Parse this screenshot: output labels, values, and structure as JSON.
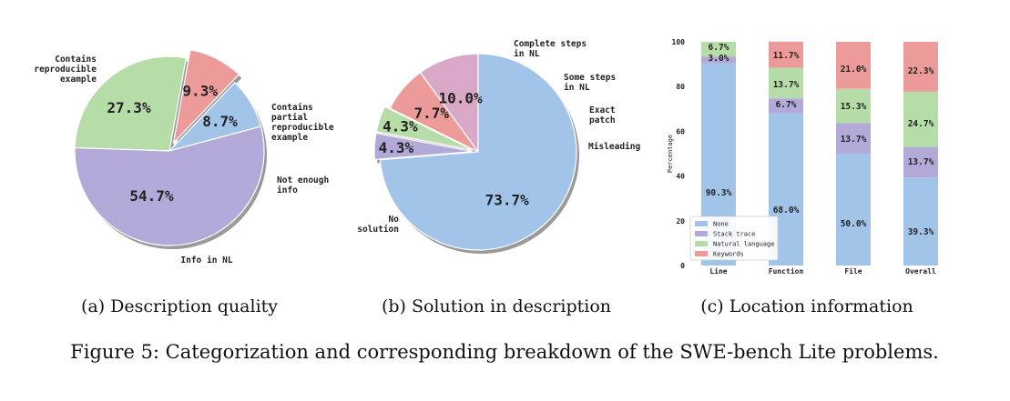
{
  "colors": {
    "blue": "#a1c4e8",
    "purple": "#b3a9d8",
    "green": "#b6dca8",
    "red": "#ec9a9a",
    "pink": "#d8a8c6",
    "shadow": "#9a9a9a"
  },
  "chart_data": [
    {
      "type": "pie",
      "title": "(a) Description quality",
      "slices": [
        {
          "label": "Contains partial reproducible example",
          "label_lines": [
            "Contains",
            "partial",
            "reproducible",
            "example"
          ],
          "value": 8.7,
          "pct": "8.7%",
          "color": "blue",
          "explode": 0
        },
        {
          "label": "Not enough info",
          "label_lines": [
            "Not enough",
            "info"
          ],
          "value": 9.3,
          "pct": "9.3%",
          "color": "red",
          "explode": 10
        },
        {
          "label": "Info in NL",
          "label_lines": [
            "Info in NL"
          ],
          "value": 27.3,
          "pct": "27.3%",
          "color": "green",
          "explode": 0
        },
        {
          "label": "Contains reproducible example",
          "label_lines": [
            "Contains",
            "reproducible",
            "example"
          ],
          "value": 54.7,
          "pct": "54.7%",
          "color": "purple",
          "explode": 0
        }
      ]
    },
    {
      "type": "pie",
      "title": "(b) Solution in description",
      "slices": [
        {
          "label": "Complete steps in NL",
          "label_lines": [
            "Complete steps",
            "in NL"
          ],
          "value": 10.0,
          "pct": "10.0%",
          "color": "pink",
          "explode": 0
        },
        {
          "label": "Some steps in NL",
          "label_lines": [
            "Some steps",
            "in NL"
          ],
          "value": 7.7,
          "pct": "7.7%",
          "color": "red",
          "explode": 0
        },
        {
          "label": "Exact patch",
          "label_lines": [
            "Exact",
            "patch"
          ],
          "value": 4.3,
          "pct": "4.3%",
          "color": "green",
          "explode": 6
        },
        {
          "label": "Misleading",
          "label_lines": [
            "Misleading"
          ],
          "value": 4.3,
          "pct": "4.3%",
          "color": "purple",
          "explode": 6
        },
        {
          "label": "No solution",
          "label_lines": [
            "No",
            "solution"
          ],
          "value": 73.7,
          "pct": "73.7%",
          "color": "blue",
          "explode": 0
        }
      ]
    },
    {
      "type": "bar",
      "stacked": true,
      "title": "(c) Location information",
      "ylabel": "Percentage",
      "ylim": [
        0,
        100
      ],
      "yticks": [
        0,
        20,
        40,
        60,
        80,
        100
      ],
      "categories": [
        "Line",
        "Function",
        "File",
        "Overall"
      ],
      "series": [
        {
          "name": "None",
          "color": "blue",
          "values": [
            90.3,
            68.0,
            50.0,
            39.3
          ],
          "labels": [
            "90.3%",
            "68.0%",
            "50.0%",
            "39.3%"
          ]
        },
        {
          "name": "Stack trace",
          "color": "purple",
          "values": [
            3.0,
            6.7,
            13.7,
            13.7
          ],
          "labels": [
            "3.0%",
            "6.7%",
            "13.7%",
            "13.7%"
          ]
        },
        {
          "name": "Natural language",
          "color": "green",
          "values": [
            6.7,
            13.7,
            15.3,
            24.7
          ],
          "labels": [
            "6.7%",
            "13.7%",
            "15.3%",
            "24.7%"
          ]
        },
        {
          "name": "Keywords",
          "color": "red",
          "values": [
            0,
            11.7,
            21.0,
            22.3
          ],
          "labels": [
            "",
            "11.7%",
            "21.0%",
            "22.3%"
          ]
        }
      ],
      "legend_position": "lower-left"
    }
  ],
  "figure_caption": "Figure 5: Categorization and corresponding breakdown of the SWE-bench Lite problems."
}
